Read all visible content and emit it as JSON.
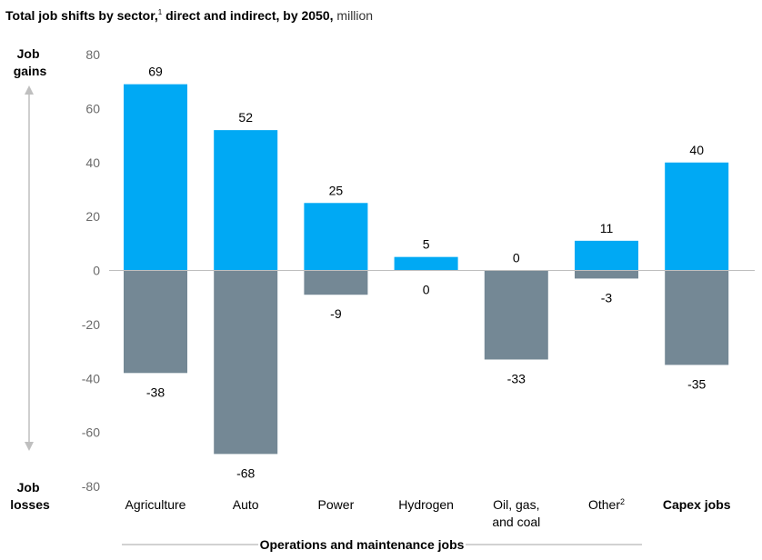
{
  "chart_data": {
    "type": "bar",
    "title": "Total job shifts by sector,",
    "title_footnote": "1",
    "subtitle_bold": " direct and indirect, by 2050,",
    "units": " million",
    "ylim": [
      -80,
      80
    ],
    "yticks": [
      80,
      60,
      40,
      20,
      0,
      -20,
      -40,
      -60,
      -80
    ],
    "categories": [
      "Agriculture",
      "Auto",
      "Power",
      "Hydrogen",
      "Oil, gas,|and coal",
      "Other",
      "Capex jobs"
    ],
    "category_footnotes": [
      "",
      "",
      "",
      "",
      "",
      "2",
      ""
    ],
    "category_bold": [
      false,
      false,
      false,
      false,
      false,
      false,
      true
    ],
    "series": [
      {
        "key": "gains",
        "values": [
          69,
          52,
          25,
          5,
          0,
          11,
          40
        ],
        "labels": [
          "69",
          "52",
          "25",
          "5",
          "0",
          "11",
          "40"
        ]
      },
      {
        "key": "losses",
        "values": [
          -38,
          -68,
          -9,
          0,
          -33,
          -3,
          -35
        ],
        "labels": [
          "-38",
          "-68",
          "-9",
          "0",
          "-33",
          "-3",
          "-35"
        ]
      }
    ],
    "y_top_label": [
      "Job",
      "gains"
    ],
    "y_bottom_label": [
      "Job",
      "losses"
    ],
    "group_label": "Operations and maintenance jobs",
    "grid": false,
    "colors": {
      "gains": "#00a9f4",
      "losses": "#748895",
      "axis": "#bfbfbf",
      "tick_text": "#6b6b6b"
    }
  }
}
